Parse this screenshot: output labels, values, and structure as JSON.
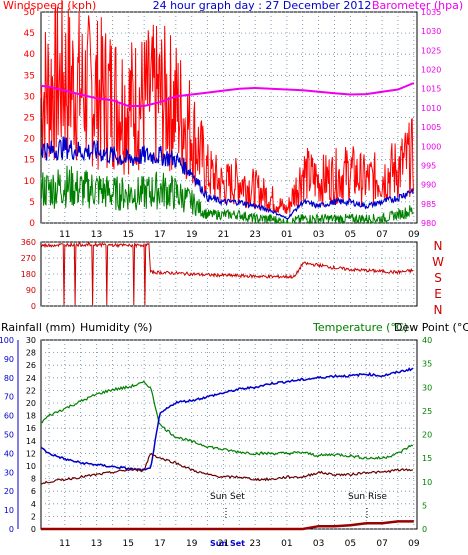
{
  "header": {
    "title": "24 hour graph day : 27 December 2012",
    "wind_label": "Windspeed (kph)",
    "baro_label": "Barometer (hpa)"
  },
  "dir_labels": [
    "N",
    "W",
    "S",
    "E",
    "N"
  ],
  "bottom_labels": {
    "rain": "Rainfall (mm)",
    "humidity": "Humidity (%)",
    "temperature": "Temperature (°C)",
    "dewpoint": "Dew Point (°C)",
    "sunset": "Sun Set",
    "sunrise": "Sun Rise",
    "sun_axis_label": "Sun Set"
  },
  "colors": {
    "wind_gust": "#ff0000",
    "wind_avg": "#0000cc",
    "wind_low": "#008000",
    "barometer": "#ee00ee",
    "direction": "#cc0000",
    "humidity": "#0000cc",
    "temperature": "#008000",
    "dewpoint": "#660000",
    "rain": "#990000"
  },
  "chart_data": [
    {
      "type": "line",
      "name": "wind_barometer",
      "x_ticks": [
        "11",
        "13",
        "15",
        "17",
        "19",
        "21",
        "23",
        "01",
        "03",
        "05",
        "07",
        "09"
      ],
      "y_left": {
        "label": "Windspeed (kph)",
        "range": [
          0,
          50
        ],
        "ticks": [
          0,
          5,
          10,
          15,
          20,
          25,
          30,
          35,
          40,
          45,
          50
        ]
      },
      "y_right": {
        "label": "Barometer (hpa)",
        "range": [
          980,
          1035
        ],
        "ticks": [
          980,
          985,
          990,
          995,
          1000,
          1005,
          1010,
          1015,
          1020,
          1025,
          1030,
          1035
        ]
      },
      "x": [
        9.5,
        10,
        11,
        12,
        13,
        14,
        15,
        16,
        17,
        18,
        19,
        20,
        21,
        22,
        23,
        24,
        25,
        26,
        27,
        28,
        29,
        30,
        31,
        32,
        33
      ],
      "series": [
        {
          "key": "gust",
          "values": [
            30,
            32,
            34,
            32,
            31,
            30,
            28,
            29,
            30,
            28,
            22,
            12,
            9,
            10,
            8,
            6,
            3,
            12,
            10,
            11,
            12,
            10,
            11,
            13,
            16
          ]
        },
        {
          "key": "avg",
          "values": [
            18,
            17,
            18,
            17,
            17,
            16,
            15,
            16,
            16,
            15,
            12,
            6,
            5,
            5,
            4,
            3,
            1,
            5,
            4,
            5,
            5,
            4,
            5,
            6,
            8
          ]
        },
        {
          "key": "low",
          "values": [
            8,
            8,
            9,
            8,
            8,
            7,
            7,
            7,
            8,
            7,
            5,
            2,
            2,
            2,
            1,
            1,
            0,
            1,
            1,
            1,
            1,
            1,
            1,
            2,
            3
          ]
        },
        {
          "key": "barometer",
          "values": [
            1015.8,
            1015.5,
            1014.5,
            1013.5,
            1012.5,
            1012,
            1010.5,
            1010.5,
            1011.5,
            1013,
            1013.5,
            1014,
            1014.5,
            1015,
            1015.2,
            1015,
            1014.8,
            1014.6,
            1014.2,
            1013.8,
            1013.5,
            1013.6,
            1014.2,
            1014.8,
            1016.5
          ]
        }
      ]
    },
    {
      "type": "line",
      "name": "wind_direction",
      "y_range": [
        0,
        360
      ],
      "y_ticks": [
        0,
        90,
        180,
        270,
        360
      ],
      "x": [
        9.5,
        11,
        13,
        15,
        16.3,
        16.4,
        18,
        20,
        22,
        24,
        25.5,
        26,
        27,
        28,
        29,
        30,
        31,
        32,
        33
      ],
      "values": [
        340,
        345,
        345,
        340,
        345,
        190,
        185,
        175,
        170,
        165,
        165,
        240,
        230,
        215,
        205,
        200,
        195,
        190,
        200
      ]
    },
    {
      "type": "line",
      "name": "temp_humidity_rain",
      "x_ticks": [
        "11",
        "13",
        "15",
        "17",
        "19",
        "21",
        "23",
        "01",
        "03",
        "05",
        "07",
        "09"
      ],
      "rain_axis": {
        "range": [
          0,
          100
        ],
        "ticks": [
          0,
          10,
          20,
          30,
          40,
          50,
          60,
          70,
          80,
          90,
          100
        ]
      },
      "humidity_axis": {
        "range": [
          0,
          30
        ],
        "ticks": [
          0,
          2,
          4,
          6,
          8,
          10,
          12,
          14,
          16,
          18,
          20,
          22,
          24,
          26,
          28,
          30
        ]
      },
      "temp_axis": {
        "range": [
          0,
          40
        ],
        "ticks": [
          0,
          5,
          10,
          15,
          20,
          25,
          30,
          35,
          40
        ]
      },
      "x": [
        9.5,
        10,
        11,
        12,
        13,
        14,
        15,
        16,
        16.4,
        17,
        18,
        19,
        20,
        21,
        22,
        23,
        24,
        25,
        26,
        27,
        28,
        29,
        30,
        31,
        32,
        33
      ],
      "series": [
        {
          "key": "temperature",
          "values": [
            22.5,
            24,
            25.5,
            27,
            28.5,
            29.5,
            30,
            31,
            30,
            22,
            19.5,
            18.5,
            17.5,
            16.8,
            16.3,
            16,
            16,
            16,
            16.2,
            15.5,
            15.8,
            15.5,
            15,
            15,
            16,
            18
          ]
        },
        {
          "key": "humidity",
          "values": [
            43,
            40,
            37,
            35,
            34,
            33,
            32,
            31,
            32,
            61,
            67,
            68,
            70,
            72,
            74,
            75,
            77,
            78,
            79,
            80,
            81,
            81,
            82,
            81,
            83,
            85
          ]
        },
        {
          "key": "dewpoint",
          "values": [
            9.5,
            10,
            10.5,
            11,
            11.5,
            12,
            12.5,
            12.5,
            16,
            15,
            14,
            12.5,
            11.5,
            11,
            11,
            10.5,
            10.5,
            11,
            11,
            12,
            11.5,
            11.5,
            12,
            12,
            12.5,
            12.5
          ]
        },
        {
          "key": "rain",
          "values": [
            0,
            0,
            0,
            0,
            0,
            0,
            0,
            0,
            0,
            0,
            0,
            0,
            0,
            0,
            0,
            0,
            0,
            0,
            0,
            1.5,
            1.5,
            2,
            3,
            3,
            4,
            4
          ]
        }
      ]
    }
  ]
}
